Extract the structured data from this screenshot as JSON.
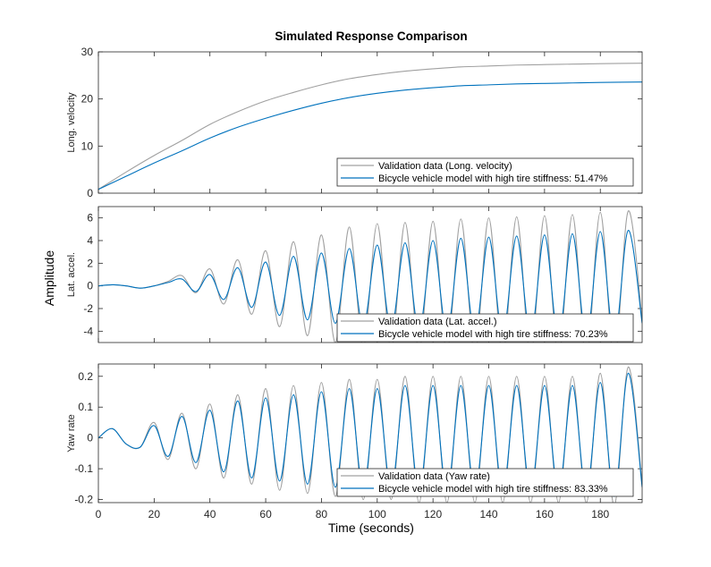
{
  "chart_data": {
    "type": "line",
    "title": "Simulated Response Comparison",
    "xlabel": "Time (seconds)",
    "shared_ylabel": "Amplitude",
    "xlim": [
      0,
      195
    ],
    "xticks": [
      0,
      20,
      40,
      60,
      80,
      100,
      120,
      140,
      160,
      180
    ],
    "colors": {
      "validation": "#a0a0a0",
      "model": "#0072bd"
    },
    "panels": [
      {
        "ylabel": "Long. velocity",
        "ylim": [
          0,
          30
        ],
        "yticks": [
          0,
          10,
          20,
          30
        ],
        "legend_location": "bottom-right",
        "series": [
          {
            "name": "Validation data (Long. velocity)",
            "role": "validation",
            "x": [
              0,
              10,
              20,
              30,
              40,
              50,
              60,
              70,
              80,
              90,
              100,
              110,
              120,
              130,
              140,
              150,
              160,
              170,
              180,
              195
            ],
            "values": [
              0.8,
              4.5,
              8.0,
              11.2,
              14.6,
              17.3,
              19.6,
              21.4,
              23.0,
              24.3,
              25.2,
              25.9,
              26.4,
              26.8,
              27.0,
              27.2,
              27.3,
              27.4,
              27.5,
              27.6
            ]
          },
          {
            "name": "Bicycle vehicle model with high tire stiffness: 51.47%",
            "role": "model",
            "x": [
              0,
              10,
              20,
              30,
              40,
              50,
              60,
              70,
              80,
              90,
              100,
              110,
              120,
              130,
              140,
              150,
              160,
              170,
              180,
              195
            ],
            "values": [
              0.8,
              3.6,
              6.4,
              9.0,
              11.7,
              14.0,
              15.9,
              17.6,
              19.1,
              20.3,
              21.2,
              21.9,
              22.4,
              22.8,
              23.0,
              23.2,
              23.3,
              23.4,
              23.5,
              23.6
            ]
          }
        ]
      },
      {
        "ylabel": "Lat. accel.",
        "ylim": [
          -5,
          7
        ],
        "yticks": [
          -4,
          -2,
          0,
          2,
          4,
          6
        ],
        "legend_location": "bottom-right",
        "series": [
          {
            "name": "Validation data (Lat. accel.)",
            "role": "validation",
            "x": [
              0,
              5,
              10,
              15,
              20,
              25,
              30,
              35,
              40,
              45,
              50,
              55,
              60,
              65,
              70,
              75,
              80,
              85,
              90,
              95,
              100,
              105,
              110,
              115,
              120,
              125,
              130,
              135,
              140,
              145,
              150,
              155,
              160,
              165,
              170,
              175,
              180,
              185,
              190,
              195
            ],
            "values": [
              0.0,
              0.1,
              0.0,
              -0.2,
              0.0,
              0.4,
              0.9,
              -0.6,
              1.5,
              -1.6,
              2.3,
              -2.5,
              3.1,
              -3.6,
              3.9,
              -4.4,
              4.5,
              -5.0,
              5.2,
              -5.4,
              5.5,
              -5.6,
              5.6,
              -5.7,
              5.7,
              -5.8,
              5.9,
              -6.0,
              6.0,
              -6.1,
              6.1,
              -6.2,
              6.2,
              -6.3,
              6.3,
              -6.4,
              6.5,
              -6.6,
              6.6,
              -3.0
            ]
          },
          {
            "name": "Bicycle vehicle model with high tire stiffness: 70.23%",
            "role": "model",
            "x": [
              0,
              5,
              10,
              15,
              20,
              25,
              30,
              35,
              40,
              45,
              50,
              55,
              60,
              65,
              70,
              75,
              80,
              85,
              90,
              95,
              100,
              105,
              110,
              115,
              120,
              125,
              130,
              135,
              140,
              145,
              150,
              155,
              160,
              165,
              170,
              175,
              180,
              185,
              190,
              195
            ],
            "values": [
              0.0,
              0.1,
              0.0,
              -0.2,
              0.0,
              0.3,
              0.6,
              -0.5,
              1.0,
              -1.2,
              1.6,
              -1.9,
              2.1,
              -2.6,
              2.6,
              -3.0,
              2.9,
              -3.3,
              3.3,
              -3.6,
              3.6,
              -3.8,
              3.8,
              -4.0,
              4.0,
              -4.2,
              4.2,
              -4.3,
              4.3,
              -4.4,
              4.4,
              -4.5,
              4.5,
              -4.6,
              4.6,
              -4.7,
              4.8,
              -4.8,
              4.9,
              -3.3
            ]
          }
        ]
      },
      {
        "ylabel": "Yaw rate",
        "ylim": [
          -0.21,
          0.24
        ],
        "yticks": [
          -0.2,
          -0.1,
          0,
          0.1,
          0.2
        ],
        "legend_location": "bottom-right",
        "series": [
          {
            "name": "Validation data (Yaw rate)",
            "role": "validation",
            "x": [
              0,
              5,
              10,
              15,
              20,
              25,
              30,
              35,
              40,
              45,
              50,
              55,
              60,
              65,
              70,
              75,
              80,
              85,
              90,
              95,
              100,
              105,
              110,
              115,
              120,
              125,
              130,
              135,
              140,
              145,
              150,
              155,
              160,
              165,
              170,
              175,
              180,
              185,
              190,
              195
            ],
            "values": [
              0.0,
              0.03,
              -0.02,
              -0.03,
              0.05,
              -0.07,
              0.08,
              -0.1,
              0.11,
              -0.13,
              0.14,
              -0.15,
              0.16,
              -0.17,
              0.17,
              -0.18,
              0.18,
              -0.19,
              0.19,
              -0.2,
              0.19,
              -0.2,
              0.2,
              -0.21,
              0.2,
              -0.21,
              0.2,
              -0.21,
              0.2,
              -0.21,
              0.2,
              -0.21,
              0.2,
              -0.21,
              0.2,
              -0.21,
              0.21,
              -0.22,
              0.23,
              -0.15
            ]
          },
          {
            "name": "Bicycle vehicle model with high tire stiffness: 83.33%",
            "role": "model",
            "x": [
              0,
              5,
              10,
              15,
              20,
              25,
              30,
              35,
              40,
              45,
              50,
              55,
              60,
              65,
              70,
              75,
              80,
              85,
              90,
              95,
              100,
              105,
              110,
              115,
              120,
              125,
              130,
              135,
              140,
              145,
              150,
              155,
              160,
              165,
              170,
              175,
              180,
              185,
              190,
              195
            ],
            "values": [
              0.0,
              0.03,
              -0.02,
              -0.03,
              0.04,
              -0.06,
              0.07,
              -0.08,
              0.09,
              -0.11,
              0.12,
              -0.13,
              0.13,
              -0.14,
              0.14,
              -0.15,
              0.15,
              -0.16,
              0.16,
              -0.17,
              0.16,
              -0.17,
              0.17,
              -0.18,
              0.17,
              -0.18,
              0.17,
              -0.18,
              0.17,
              -0.18,
              0.17,
              -0.18,
              0.17,
              -0.18,
              0.17,
              -0.18,
              0.18,
              -0.19,
              0.21,
              -0.16
            ]
          }
        ]
      }
    ]
  }
}
